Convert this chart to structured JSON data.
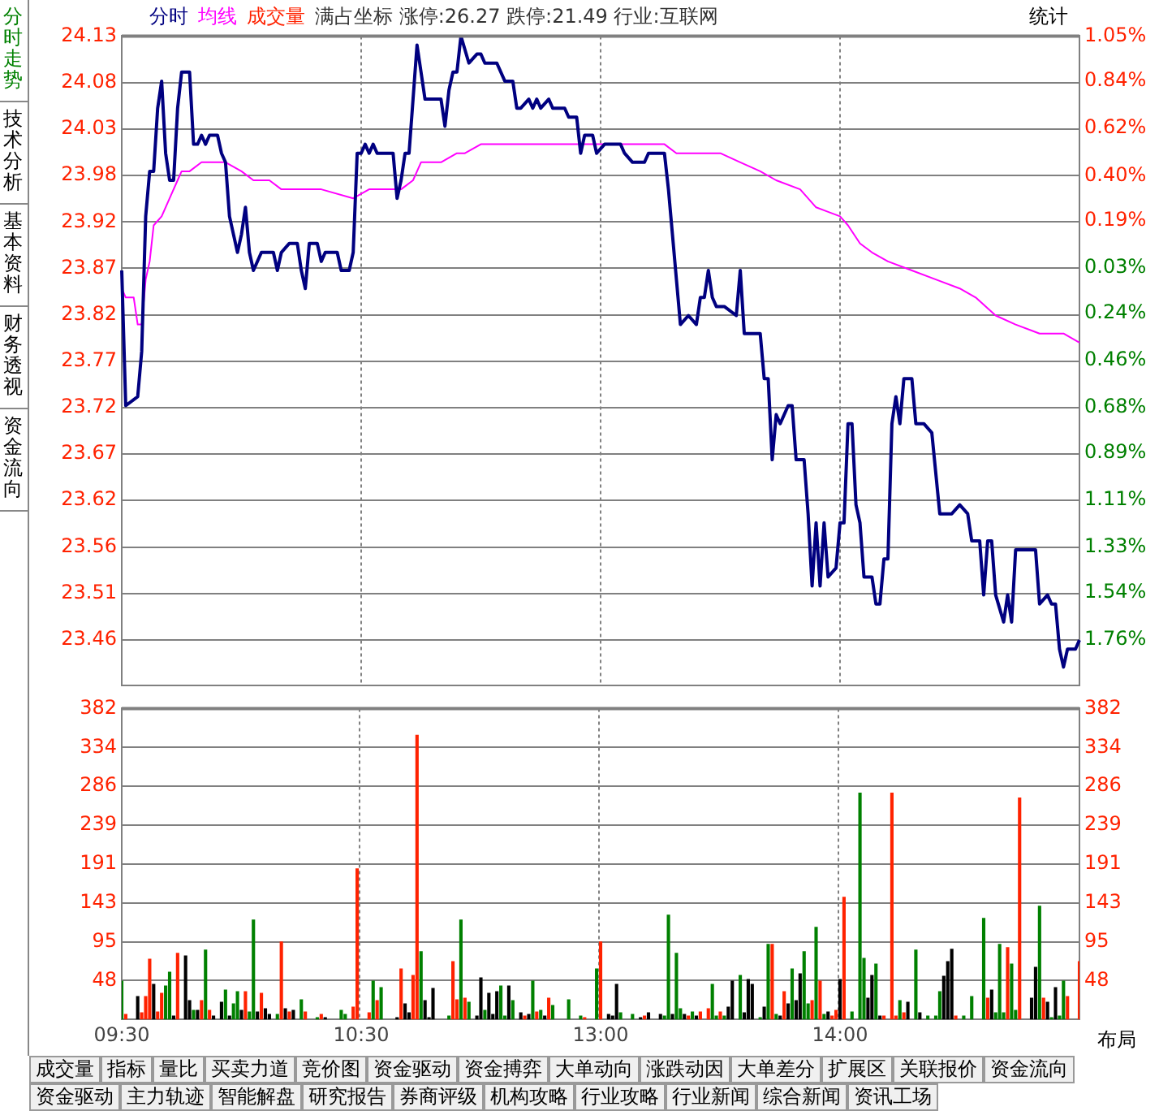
{
  "chart_data": [
    {
      "type": "line",
      "title": "满占坐标 涨停:26.27 跌停:21.49 行业:互联网",
      "subtitle": "统计",
      "annotations": [
        "分时走势",
        "技术分析",
        "基本资料",
        "财务透视",
        "资金流向"
      ],
      "series": [
        {
          "name": "分时",
          "color": "#000080",
          "values": [
            23.87,
            23.72,
            null,
            null,
            23.73,
            23.78,
            23.93,
            23.98,
            23.98,
            24.05,
            24.08,
            24.0,
            23.97,
            23.97,
            24.05,
            24.09,
            null,
            24.09,
            24.01,
            24.01,
            24.02,
            24.01,
            24.02,
            null,
            24.02,
            24.0,
            23.99,
            23.93,
            23.91,
            23.89,
            23.91,
            23.94,
            23.89,
            23.87,
            null,
            23.89,
            null,
            null,
            23.89,
            23.87,
            23.89,
            null,
            23.9,
            null,
            23.9,
            23.87,
            23.85,
            23.9,
            null,
            23.9,
            23.88,
            23.89,
            null,
            null,
            23.89,
            23.87,
            null,
            23.87,
            23.89,
            24.0,
            24.0,
            24.01,
            24.0,
            24.01,
            24.0,
            null,
            null,
            null,
            24.0,
            23.95,
            23.97,
            24.0,
            24.0,
            24.06,
            24.12,
            24.09,
            24.06,
            null,
            null,
            null,
            24.06,
            24.03,
            24.07,
            24.09,
            24.09,
            24.13,
            null,
            24.1,
            null,
            24.11,
            24.11,
            24.1,
            null,
            null,
            24.1,
            null,
            24.08,
            null,
            24.08,
            24.05,
            24.05,
            null,
            24.06,
            24.05,
            24.06,
            24.05,
            null,
            24.06,
            24.05,
            null,
            null,
            24.05,
            24.04,
            null,
            24.04,
            24.0,
            24.02,
            null,
            24.02,
            24.0,
            null,
            24.01,
            null,
            null,
            null,
            24.01,
            24.0,
            null,
            23.99,
            null,
            null,
            23.99,
            24.0,
            null,
            null,
            null,
            24.0,
            23.96,
            23.91,
            23.86,
            23.81,
            null,
            23.82,
            null,
            23.81,
            23.84,
            23.84,
            23.87,
            23.84,
            23.83,
            null,
            23.83,
            null,
            null,
            23.82,
            23.87,
            23.8,
            null,
            null,
            null,
            23.8,
            23.75,
            23.75,
            23.66,
            23.71,
            23.7,
            null,
            23.72,
            23.72,
            23.66,
            null,
            23.66,
            23.6,
            23.52,
            23.59,
            23.52,
            23.59,
            23.53,
            null,
            23.54,
            23.59,
            23.59,
            23.7,
            23.7,
            23.61,
            23.59,
            23.53,
            null,
            23.53,
            23.5,
            23.5,
            23.55,
            23.55,
            23.7,
            23.73,
            23.7,
            23.75,
            null,
            23.75,
            23.7,
            null,
            23.7,
            null,
            23.69,
            null,
            23.6,
            null,
            null,
            23.6,
            null,
            23.61,
            null,
            23.6,
            23.57,
            null,
            23.57,
            23.51,
            23.57,
            23.57,
            23.51,
            null,
            23.48,
            23.51,
            23.48,
            23.56,
            null,
            null,
            null,
            null,
            23.56,
            23.5,
            null,
            23.51,
            23.5,
            23.5,
            23.45,
            23.43,
            23.45,
            null,
            23.45,
            23.46
          ]
        },
        {
          "name": "均线",
          "color": "#ff00ff",
          "values": [
            23.85,
            23.84,
            null,
            23.84,
            23.81,
            23.81,
            23.86,
            23.88,
            23.92,
            null,
            23.93,
            null,
            23.95,
            null,
            23.97,
            23.98,
            null,
            23.98,
            null,
            null,
            23.99,
            null,
            null,
            null,
            null,
            null,
            23.99,
            null,
            null,
            null,
            23.98,
            null,
            null,
            23.97,
            null,
            null,
            null,
            23.97,
            null,
            null,
            23.96,
            null,
            null,
            null,
            null,
            null,
            null,
            null,
            null,
            null,
            23.96,
            null,
            null,
            null,
            null,
            null,
            null,
            null,
            23.95,
            null,
            null,
            null,
            23.96,
            null,
            null,
            null,
            null,
            null,
            null,
            null,
            23.96,
            null,
            null,
            23.97,
            null,
            23.99,
            null,
            null,
            null,
            null,
            23.99,
            null,
            null,
            null,
            24.0,
            null,
            24.0,
            null,
            null,
            null,
            24.01,
            null,
            null,
            null,
            null,
            null,
            null,
            null,
            null,
            null,
            24.01,
            null,
            null,
            null,
            null,
            null,
            null,
            null,
            null,
            null,
            null,
            null,
            null,
            null,
            null,
            null,
            null,
            null,
            null,
            24.01,
            null,
            null,
            null,
            null,
            null,
            null,
            null,
            null,
            null,
            null,
            null,
            null,
            null,
            null,
            null,
            null,
            24.01,
            null,
            null,
            24.0,
            null,
            null,
            null,
            null,
            null,
            null,
            null,
            null,
            null,
            null,
            24.0,
            null,
            null,
            null,
            null,
            23.99,
            null,
            null,
            null,
            null,
            23.98,
            null,
            null,
            null,
            23.97,
            null,
            null,
            null,
            null,
            null,
            23.96,
            null,
            null,
            null,
            23.94,
            null,
            null,
            null,
            null,
            null,
            23.93,
            null,
            23.92,
            null,
            null,
            23.9,
            null,
            null,
            23.89,
            null,
            null,
            null,
            23.88,
            null,
            null,
            null,
            null,
            null,
            23.87,
            null,
            null,
            null,
            null,
            null,
            23.86,
            null,
            null,
            null,
            null,
            null,
            23.85,
            null,
            null,
            null,
            23.84,
            null,
            null,
            null,
            null,
            23.82,
            null,
            null,
            null,
            null,
            23.81,
            null,
            null,
            null,
            null,
            null,
            23.8,
            null,
            null,
            null,
            null,
            null,
            23.8,
            null,
            null,
            null,
            23.79
          ]
        }
      ],
      "ylim": [
        23.41,
        24.13
      ],
      "yticks": [
        {
          "value": 23.46,
          "label": "23.46"
        },
        {
          "value": 23.5115,
          "label": "23.51"
        },
        {
          "value": 23.5631,
          "label": "23.56"
        },
        {
          "value": 23.6154,
          "label": "23.62"
        },
        {
          "value": 23.6662,
          "label": "23.67"
        },
        {
          "value": 23.7177,
          "label": "23.72"
        },
        {
          "value": 23.7692,
          "label": "23.77"
        },
        {
          "value": 23.8208,
          "label": "23.82"
        },
        {
          "value": 23.8723,
          "label": "23.87"
        },
        {
          "value": 23.9238,
          "label": "23.92"
        },
        {
          "value": 23.9754,
          "label": "23.98"
        },
        {
          "value": 24.0269,
          "label": "24.03"
        },
        {
          "value": 24.0785,
          "label": "24.08"
        },
        {
          "value": 24.13,
          "label": "24.13"
        }
      ],
      "y2lim": [
        -1.97,
        1.05
      ],
      "y2ticks": [
        {
          "value": -1.76,
          "label": "1.76%"
        },
        {
          "value": -1.54,
          "label": "1.54%"
        },
        {
          "value": -1.33,
          "label": "1.33%"
        },
        {
          "value": -1.11,
          "label": "1.11%"
        },
        {
          "value": -0.89,
          "label": "0.89%"
        },
        {
          "value": -0.68,
          "label": "0.68%"
        },
        {
          "value": -0.46,
          "label": "0.46%"
        },
        {
          "value": -0.24,
          "label": "0.24%"
        },
        {
          "value": -0.03,
          "label": "0.03%"
        },
        {
          "value": 0.19,
          "label": "0.19%"
        },
        {
          "value": 0.4,
          "label": "0.40%"
        },
        {
          "value": 0.62,
          "label": "0.62%"
        },
        {
          "value": 0.84,
          "label": "0.84%"
        },
        {
          "value": 1.05,
          "label": "1.05%"
        }
      ],
      "grid": true,
      "legend": false,
      "marker": "none",
      "line_style": "solid",
      "tick_labels": "y"
    },
    {
      "type": "bar",
      "xlabel": "布局",
      "annotations": [
        "成交量",
        "指标",
        "量比",
        "买卖力道",
        "竞价图",
        "资金驱动",
        "资金搏弈",
        "大单动向",
        "涨跌动因",
        "大单差分",
        "扩展区",
        "关联报价",
        "资金流向",
        "资金驱动",
        "主力轨迹",
        "智能解盘",
        "研究报告",
        "券商评级",
        "机构攻略",
        "行业攻略",
        "行业新闻",
        "综合新闻",
        "资讯工场"
      ],
      "categories": [
        "09:30",
        null,
        null,
        null,
        null,
        null,
        null,
        null,
        null,
        null,
        null,
        null,
        null,
        null,
        null,
        null,
        null,
        null,
        null,
        null,
        null,
        null,
        null,
        null,
        null,
        null,
        null,
        null,
        null,
        null,
        null,
        null,
        null,
        null,
        null,
        null,
        null,
        null,
        null,
        null,
        null,
        null,
        null,
        null,
        null,
        null,
        null,
        null,
        null,
        null,
        null,
        null,
        null,
        null,
        null,
        null,
        null,
        null,
        null,
        null,
        "10:30",
        null,
        null,
        null,
        null,
        null,
        null,
        null,
        null,
        null,
        null,
        null,
        null,
        null,
        null,
        null,
        null,
        null,
        null,
        null,
        null,
        null,
        null,
        null,
        null,
        null,
        null,
        null,
        null,
        null,
        null,
        null,
        null,
        null,
        null,
        null,
        null,
        null,
        null,
        null,
        null,
        null,
        null,
        null,
        null,
        null,
        null,
        null,
        null,
        null,
        null,
        null,
        null,
        null,
        null,
        null,
        null,
        null,
        null,
        null,
        "13:00",
        null,
        null,
        null,
        null,
        null,
        null,
        null,
        null,
        null,
        null,
        null,
        null,
        null,
        null,
        null,
        null,
        null,
        null,
        null,
        null,
        null,
        null,
        null,
        null,
        null,
        null,
        null,
        null,
        null,
        null,
        null,
        null,
        null,
        null,
        null,
        null,
        null,
        null,
        null,
        null,
        null,
        null,
        null,
        null,
        null,
        null,
        null,
        null,
        null,
        null,
        null,
        null,
        null,
        null,
        null,
        null,
        null,
        null,
        null,
        "14:00",
        null,
        null,
        null,
        null,
        null,
        null,
        null,
        null,
        null,
        null,
        null,
        null,
        null,
        null,
        null,
        null,
        null,
        null,
        null,
        null,
        null,
        null,
        null,
        null,
        null,
        null,
        null,
        null,
        null,
        null,
        null,
        null,
        null,
        null,
        null,
        null,
        null,
        null,
        null,
        null,
        null,
        null,
        null,
        null,
        null,
        null,
        null,
        null,
        null,
        null,
        null,
        null,
        null,
        null,
        null,
        null,
        null,
        null,
        null,
        null
      ],
      "series": [
        {
          "name": "成交量",
          "color": "#ff2200",
          "values": [
            47,
            6,
            null,
            null,
            28,
            8,
            28,
            74,
            43,
            9,
            32,
            41,
            58,
            4,
            81,
            null,
            78,
            23,
            11,
            11,
            23,
            85,
            11,
            4,
            null,
            21,
            36,
            4,
            19,
            34,
            11,
            34,
            9,
            122,
            9,
            32,
            13,
            6,
            null,
            6,
            95,
            13,
            9,
            11,
            null,
            24,
            9,
            null,
            null,
            2,
            6,
            2,
            null,
            null,
            null,
            11,
            6,
            null,
            15,
            185,
            null,
            null,
            8,
            47,
            23,
            39,
            null,
            null,
            null,
            2,
            62,
            19,
            8,
            54,
            349,
            83,
            23,
            2,
            38,
            null,
            null,
            null,
            4,
            71,
            24,
            122,
            26,
            21,
            null,
            4,
            51,
            11,
            32,
            6,
            34,
            41,
            4,
            41,
            23,
            null,
            8,
            4,
            6,
            47,
            9,
            11,
            4,
            26,
            17,
            null,
            null,
            null,
            24,
            null,
            null,
            4,
            2,
            null,
            null,
            62,
            95,
            null,
            6,
            4,
            43,
            8,
            null,
            null,
            6,
            null,
            2,
            4,
            8,
            null,
            null,
            6,
            4,
            128,
            6,
            81,
            13,
            6,
            4,
            9,
            4,
            9,
            null,
            13,
            43,
            4,
            9,
            4,
            15,
            47,
            null,
            54,
            8,
            49,
            43,
            null,
            2,
            15,
            92,
            92,
            6,
            4,
            34,
            19,
            62,
            23,
            56,
            83,
            19,
            23,
            113,
            47,
            6,
            9,
            4,
            11,
            49,
            150,
            null,
            9,
            null,
            278,
            75,
            26,
            54,
            68,
            4,
            4,
            null,
            278,
            4,
            23,
            8,
            21,
            null,
            85,
            8,
            null,
            4,
            null,
            4,
            34,
            53,
            71,
            86,
            4,
            null,
            4,
            null,
            28,
            null,
            null,
            124,
            26,
            36,
            8,
            92,
            8,
            88,
            68,
            11,
            272,
            null,
            null,
            26,
            64,
            139,
            26,
            21,
            2,
            39,
            4,
            47,
            28,
            null,
            null,
            71
          ],
          "colors": [
            "#008000",
            "#ff2200",
            null,
            null,
            "#000000",
            "#ff2200",
            "#ff2200",
            "#ff2200",
            "#000000",
            "#ff2200",
            "#ff2200",
            "#008000",
            "#008000",
            "#000000",
            "#ff2200",
            null,
            "#000000",
            "#000000",
            "#008000",
            "#000000",
            "#ff2200",
            "#008000",
            "#ff2200",
            "#000000",
            null,
            "#000000",
            "#008000",
            "#000000",
            "#008000",
            "#008000",
            "#000000",
            "#ff2200",
            "#008000",
            "#008000",
            "#000000",
            "#ff2200",
            "#000000",
            "#000000",
            null,
            "#008000",
            "#ff2200",
            "#000000",
            "#ff2200",
            "#000000",
            null,
            "#008000",
            "#ff2200",
            null,
            null,
            "#008000",
            "#ff2200",
            "#000000",
            null,
            null,
            null,
            "#008000",
            "#008000",
            null,
            "#ff2200",
            "#ff2200",
            null,
            null,
            "#ff2200",
            "#008000",
            "#ff2200",
            "#008000",
            null,
            null,
            null,
            "#000000",
            "#ff2200",
            "#000000",
            "#000000",
            "#ff2200",
            "#ff2200",
            "#008000",
            "#000000",
            "#000000",
            "#000000",
            null,
            null,
            null,
            "#008000",
            "#ff2200",
            "#ff2200",
            "#008000",
            "#ff2200",
            "#008000",
            null,
            "#000000",
            "#000000",
            "#008000",
            "#000000",
            "#000000",
            "#000000",
            "#008000",
            "#008000",
            "#000000",
            "#008000",
            null,
            "#000000",
            "#ff2200",
            "#000000",
            "#008000",
            "#ff2200",
            "#008000",
            "#000000",
            "#ff2200",
            "#008000",
            null,
            null,
            null,
            "#008000",
            null,
            null,
            "#008000",
            "#ff2200",
            null,
            null,
            "#008000",
            "#ff2200",
            null,
            "#000000",
            "#000000",
            "#000000",
            "#008000",
            null,
            null,
            "#008000",
            null,
            "#000000",
            "#ff2200",
            "#000000",
            null,
            null,
            "#000000",
            "#008000",
            "#008000",
            "#000000",
            "#008000",
            "#008000",
            "#000000",
            "#ff2200",
            "#008000",
            "#000000",
            "#ff2200",
            null,
            "#ff2200",
            "#008000",
            "#008000",
            "#ff2200",
            "#008000",
            "#000000",
            "#000000",
            null,
            "#008000",
            "#000000",
            "#000000",
            "#000000",
            null,
            "#008000",
            "#000000",
            "#008000",
            "#ff2200",
            "#008000",
            "#000000",
            "#ff2200",
            "#000000",
            "#008000",
            "#000000",
            "#000000",
            "#008000",
            "#008000",
            "#ff2200",
            "#008000",
            "#ff2200",
            "#008000",
            "#000000",
            "#ff2200",
            "#ff2200",
            "#000000",
            "#ff2200",
            null,
            "#008000",
            null,
            "#008000",
            "#008000",
            "#000000",
            "#000000",
            "#008000",
            "#000000",
            "#ff2200",
            null,
            "#ff2200",
            "#ff2200",
            "#008000",
            "#ff2200",
            "#000000",
            null,
            "#008000",
            "#000000",
            null,
            "#008000",
            null,
            "#008000",
            "#008000",
            "#000000",
            "#000000",
            "#000000",
            "#ff2200",
            null,
            "#008000",
            null,
            "#008000",
            null,
            null,
            "#008000",
            "#ff2200",
            "#000000",
            "#008000",
            "#008000",
            "#008000",
            "#ff2200",
            "#008000",
            "#008000",
            "#ff2200",
            null,
            null,
            "#000000",
            "#000000",
            "#008000",
            "#ff2200",
            "#000000",
            "#008000",
            "#000000",
            "#008000",
            "#008000",
            "#ff2200",
            null,
            null,
            "#ff2200"
          ]
        }
      ],
      "ylim": [
        0,
        382
      ],
      "yticks": [
        {
          "value": 47.75,
          "label": "48"
        },
        {
          "value": 95.5,
          "label": "95"
        },
        {
          "value": 143.25,
          "label": "143"
        },
        {
          "value": 191,
          "label": "191"
        },
        {
          "value": 238.75,
          "label": "239"
        },
        {
          "value": 286.5,
          "label": "286"
        },
        {
          "value": 334.25,
          "label": "334"
        },
        {
          "value": 382,
          "label": "382"
        }
      ],
      "y2lim": [
        0,
        382
      ],
      "y2ticks": [
        {
          "value": 47.75,
          "label": "48"
        },
        {
          "value": 95.5,
          "label": "95"
        },
        {
          "value": 143.25,
          "label": "143"
        },
        {
          "value": 191,
          "label": "191"
        },
        {
          "value": 238.75,
          "label": "239"
        },
        {
          "value": 286.5,
          "label": "286"
        },
        {
          "value": 334.25,
          "label": "334"
        },
        {
          "value": 382,
          "label": "382"
        }
      ],
      "grid": true,
      "legend": false
    }
  ]
}
